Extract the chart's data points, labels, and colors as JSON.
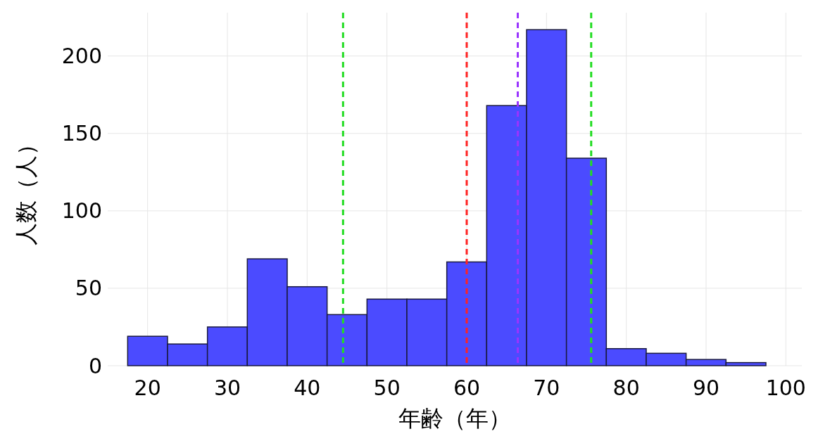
{
  "chart_data": {
    "type": "histogram",
    "xlabel": "年齢（年）",
    "ylabel": "人数（人）",
    "bins": [
      17.5,
      22.5,
      27.5,
      32.5,
      37.5,
      42.5,
      47.5,
      52.5,
      57.5,
      62.5,
      67.5,
      72.5,
      77.5,
      82.5,
      87.5,
      92.5,
      97.5
    ],
    "values": [
      19,
      14,
      25,
      69,
      51,
      33,
      43,
      43,
      67,
      168,
      217,
      134,
      11,
      8,
      4,
      2
    ],
    "color": "#4b4bff",
    "xlim": [
      15,
      102
    ],
    "xticks": [
      20,
      30,
      40,
      50,
      60,
      70,
      80,
      90,
      100
    ],
    "ylim": [
      0,
      228
    ],
    "yticks": [
      0,
      50,
      100,
      150,
      200
    ],
    "grid": true,
    "ref_lines": [
      {
        "axis": "x",
        "value": 44.5,
        "color": "#22dd22",
        "line_style": "dashed"
      },
      {
        "axis": "x",
        "value": 60,
        "color": "#ff2222",
        "line_style": "dashed"
      },
      {
        "axis": "x",
        "value": 66.4,
        "color": "#9933ff",
        "line_style": "dashed"
      },
      {
        "axis": "x",
        "value": 75.6,
        "color": "#22dd22",
        "line_style": "dashed"
      }
    ]
  }
}
